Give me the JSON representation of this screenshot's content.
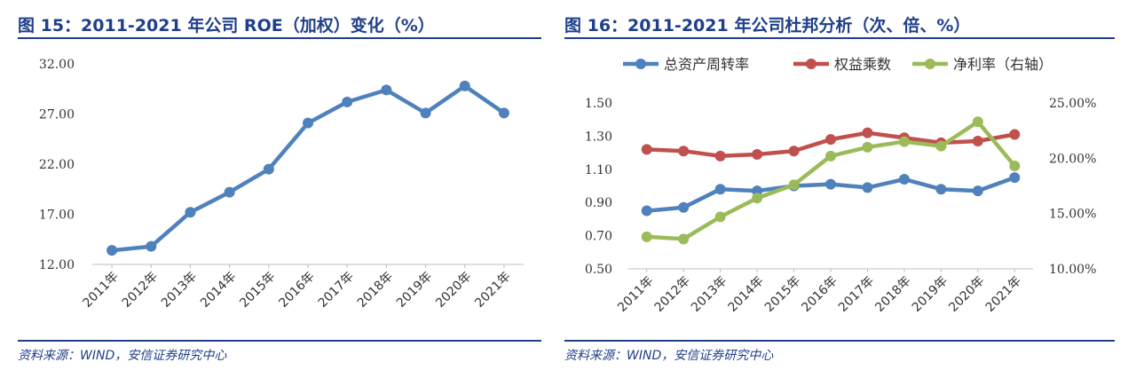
{
  "left": {
    "title": "图 15：2011-2021 年公司 ROE（加权）变化（%）",
    "source": "资料来源：WIND，安信证券研究中心"
  },
  "right": {
    "title": "图 16：2011-2021 年公司杜邦分析（次、倍、%）",
    "source": "资料来源：WIND，安信证券研究中心"
  },
  "chart_data": [
    {
      "type": "line",
      "title": "",
      "categories": [
        "2011年",
        "2012年",
        "2013年",
        "2014年",
        "2015年",
        "2016年",
        "2017年",
        "2018年",
        "2019年",
        "2020年",
        "2021年"
      ],
      "series": [
        {
          "name": "",
          "color": "#4f81bd",
          "values": [
            13.4,
            13.8,
            17.2,
            19.2,
            21.5,
            26.1,
            28.2,
            29.4,
            27.1,
            29.8,
            27.1
          ]
        }
      ],
      "ylim": [
        12,
        32
      ],
      "yticks": [
        "12.00",
        "17.00",
        "22.00",
        "27.00",
        "32.00"
      ],
      "ytick_values": [
        12,
        17,
        22,
        27,
        32
      ],
      "grid": false,
      "legend": "none"
    },
    {
      "type": "line",
      "title": "",
      "categories": [
        "2011年",
        "2012年",
        "2013年",
        "2014年",
        "2015年",
        "2016年",
        "2017年",
        "2018年",
        "2019年",
        "2020年",
        "2021年"
      ],
      "series": [
        {
          "name": "总资产周转率",
          "axis": "left",
          "color": "#4f81bd",
          "values": [
            0.85,
            0.87,
            0.98,
            0.97,
            1.0,
            1.01,
            0.99,
            1.04,
            0.98,
            0.97,
            1.05
          ]
        },
        {
          "name": "权益乘数",
          "axis": "left",
          "color": "#c0504d",
          "values": [
            1.22,
            1.21,
            1.18,
            1.19,
            1.21,
            1.28,
            1.32,
            1.29,
            1.26,
            1.27,
            1.31
          ]
        },
        {
          "name": "净利率（右轴）",
          "axis": "right",
          "color": "#9bbb59",
          "values": [
            12.9,
            12.7,
            14.7,
            16.4,
            17.6,
            20.2,
            21.0,
            21.5,
            21.1,
            23.3,
            19.3
          ]
        }
      ],
      "ylim_left": [
        0.5,
        1.5
      ],
      "yticks_left": [
        "0.50",
        "0.70",
        "0.90",
        "1.10",
        "1.30",
        "1.50"
      ],
      "ytick_values_left": [
        0.5,
        0.7,
        0.9,
        1.1,
        1.3,
        1.5
      ],
      "ylim_right": [
        10,
        25
      ],
      "yticks_right": [
        "10.00%",
        "15.00%",
        "20.00%",
        "25.00%"
      ],
      "ytick_values_right": [
        10,
        15,
        20,
        25
      ],
      "grid": false,
      "legend": "top"
    }
  ]
}
